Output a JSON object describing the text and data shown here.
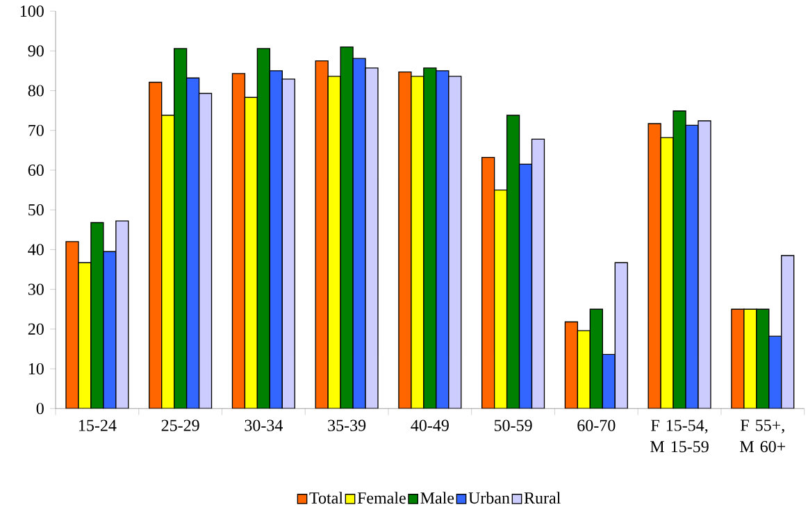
{
  "chart_data": {
    "type": "bar",
    "categories": [
      "15-24",
      "25-29",
      "30-34",
      "35-39",
      "40-49",
      "50-59",
      "60-70",
      "F 15-54, M 15-59",
      "F 55+, M 60+"
    ],
    "series": [
      {
        "name": "Total",
        "color": "#ff6600",
        "values": [
          42.0,
          82.1,
          84.3,
          87.5,
          84.7,
          63.2,
          21.8,
          71.7,
          25.0
        ]
      },
      {
        "name": "Female",
        "color": "#ffff00",
        "values": [
          36.7,
          73.8,
          78.3,
          83.6,
          83.6,
          55.0,
          19.6,
          68.2,
          25.0
        ]
      },
      {
        "name": "Male",
        "color": "#008000",
        "values": [
          46.8,
          90.6,
          90.6,
          91.0,
          85.7,
          73.8,
          25.0,
          74.9,
          25.0
        ]
      },
      {
        "name": "Urban",
        "color": "#3366ff",
        "values": [
          39.5,
          83.2,
          85.0,
          88.1,
          85.0,
          61.5,
          13.6,
          71.3,
          18.2
        ]
      },
      {
        "name": "Rural",
        "color": "#ccccff",
        "values": [
          47.2,
          79.3,
          82.9,
          85.7,
          83.6,
          67.8,
          36.7,
          72.4,
          38.5
        ]
      }
    ],
    "ylim": [
      0,
      100
    ],
    "yticks": [
      0,
      10,
      20,
      30,
      40,
      50,
      60,
      70,
      80,
      90,
      100
    ],
    "legend": "bottom"
  }
}
